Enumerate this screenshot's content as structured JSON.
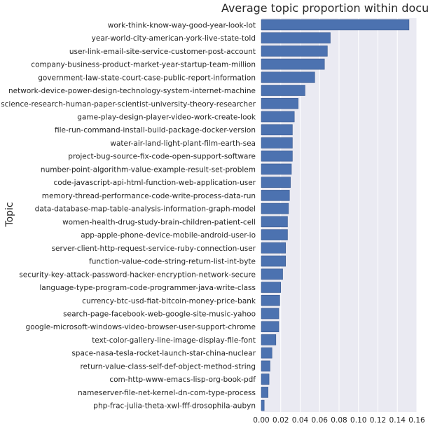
{
  "chart_data": {
    "type": "bar",
    "orientation": "horizontal",
    "title": "Average topic proportion within document",
    "xlabel": "",
    "ylabel": "Topic",
    "xlim": [
      0,
      0.16
    ],
    "xticks": [
      "0.00",
      "0.02",
      "0.04",
      "0.06",
      "0.08",
      "0.10",
      "0.12",
      "0.14",
      "0.16"
    ],
    "grid": true,
    "bar_color": "#4c72b0",
    "plot_background": "#eaeaf2",
    "categories": [
      "work-think-know-way-good-year-look-lot",
      "year-world-city-american-york-live-state-told",
      "user-link-email-site-service-customer-post-account",
      "company-business-product-market-year-startup-team-million",
      "government-law-state-court-case-public-report-information",
      "network-device-power-design-technology-system-internet-machine",
      "science-research-human-paper-scientist-university-theory-researcher",
      "game-play-design-player-video-work-create-look",
      "file-run-command-install-build-package-docker-version",
      "water-air-land-light-plant-film-earth-sea",
      "project-bug-source-fix-code-open-support-software",
      "number-point-algorithm-value-example-result-set-problem",
      "code-javascript-api-html-function-web-application-user",
      "memory-thread-performance-code-write-process-data-run",
      "data-database-map-table-analysis-information-graph-model",
      "women-health-drug-study-brain-children-patient-cell",
      "app-apple-phone-device-mobile-android-user-io",
      "server-client-http-request-service-ruby-connection-user",
      "function-value-code-string-return-list-int-byte",
      "security-key-attack-password-hacker-encryption-network-secure",
      "language-type-program-code-programmer-java-write-class",
      "currency-btc-usd-fiat-bitcoin-money-price-bank",
      "search-page-facebook-web-google-site-music-yahoo",
      "google-microsoft-windows-video-browser-user-support-chrome",
      "text-color-gallery-line-image-display-file-font",
      "space-nasa-tesla-rocket-launch-star-china-nuclear",
      "return-value-class-self-def-object-method-string",
      "com-http-www-emacs-lisp-org-book-pdf",
      "nameserver-file-net-kernel-dn-com-type-process",
      "php-frac-julia-theta-xwl-fff-drosophila-aubyn"
    ],
    "values": [
      0.152,
      0.071,
      0.068,
      0.065,
      0.055,
      0.045,
      0.038,
      0.034,
      0.032,
      0.032,
      0.032,
      0.031,
      0.03,
      0.029,
      0.028,
      0.027,
      0.027,
      0.025,
      0.025,
      0.022,
      0.02,
      0.019,
      0.018,
      0.018,
      0.015,
      0.011,
      0.009,
      0.008,
      0.007,
      0.003
    ]
  }
}
